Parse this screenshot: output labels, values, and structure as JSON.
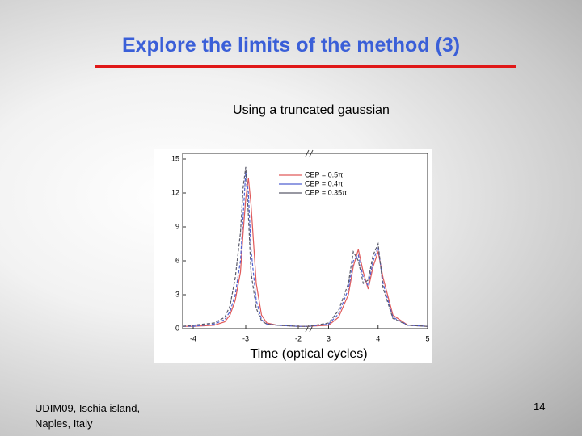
{
  "slide": {
    "title": "Explore the limits of the method (3)",
    "subtitle": "Using a truncated gaussian",
    "footer": [
      "UDIM09, Ischia island,",
      "Naples, Italy"
    ],
    "page_number": "14"
  },
  "chart_data": {
    "type": "line",
    "x_label": "Time (optical cycles)",
    "x_segments": [
      {
        "xlim": [
          -4.2,
          -1.8
        ],
        "xticks": [
          -4,
          -3,
          -2
        ]
      },
      {
        "xlim": [
          2.6,
          5
        ],
        "xticks": [
          3,
          4,
          5
        ]
      }
    ],
    "ylim": [
      0,
      15.5
    ],
    "yticks": [
      0,
      3,
      6,
      9,
      12,
      15
    ],
    "x": [
      -4.2,
      -4,
      -3.6,
      -3.4,
      -3.3,
      -3.2,
      -3.1,
      -3.05,
      -3.0,
      -2.95,
      -2.9,
      -2.8,
      -2.7,
      -2.6,
      -2.4,
      -2,
      -1.8,
      2.6,
      3,
      3.2,
      3.4,
      3.5,
      3.6,
      3.7,
      3.8,
      3.9,
      4.0,
      4.1,
      4.3,
      4.6,
      5.0
    ],
    "legend": "upper right",
    "series": [
      {
        "name": "CEP = 0.5π",
        "color": "#e05a5a",
        "values": [
          0.2,
          0.2,
          0.3,
          0.6,
          1.2,
          2.5,
          5,
          8.5,
          11.5,
          13.3,
          11,
          4,
          1.2,
          0.5,
          0.3,
          0.2,
          0.2,
          0.2,
          0.3,
          1.0,
          3.0,
          5.5,
          7.0,
          5.0,
          3.5,
          5.5,
          6.8,
          4.5,
          1.2,
          0.3,
          0.2
        ]
      },
      {
        "name": "CEP = 0.4π",
        "color": "#5060d0",
        "values": [
          0.2,
          0.2,
          0.4,
          0.8,
          1.5,
          3,
          6,
          10,
          13.9,
          12,
          7,
          2.5,
          0.8,
          0.4,
          0.3,
          0.2,
          0.2,
          0.2,
          0.4,
          1.3,
          3.5,
          6.0,
          6.5,
          4.5,
          3.8,
          6.0,
          7.2,
          4.0,
          1.0,
          0.3,
          0.2
        ]
      },
      {
        "name": "CEP = 0.35π",
        "color": "#5a5a6a",
        "values": [
          0.2,
          0.3,
          0.5,
          1.0,
          2,
          4.5,
          8.5,
          12.5,
          14.3,
          10,
          5,
          1.8,
          0.7,
          0.4,
          0.3,
          0.2,
          0.2,
          0.2,
          0.5,
          1.6,
          4.0,
          6.8,
          6.0,
          4.0,
          4.3,
          6.5,
          7.5,
          3.6,
          0.9,
          0.3,
          0.2
        ]
      }
    ]
  }
}
